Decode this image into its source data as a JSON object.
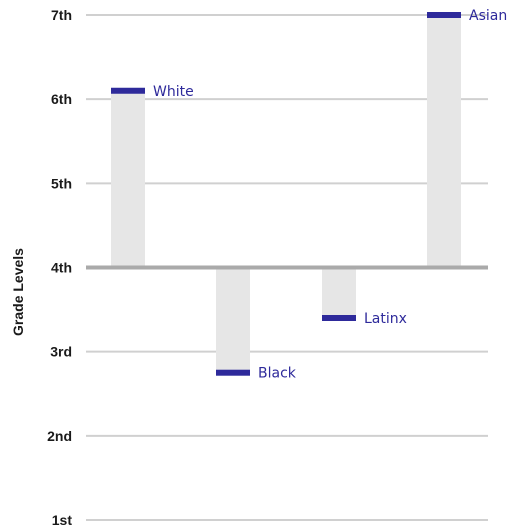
{
  "chart_data": {
    "type": "bar",
    "ylabel": "Grade Levels",
    "xlabel": "",
    "y_ticks": [
      {
        "value": 1,
        "label": "1st"
      },
      {
        "value": 2,
        "label": "2nd"
      },
      {
        "value": 3,
        "label": "3rd"
      },
      {
        "value": 4,
        "label": "4th"
      },
      {
        "value": 5,
        "label": "5th"
      },
      {
        "value": 6,
        "label": "6th"
      },
      {
        "value": 7,
        "label": "7th"
      }
    ],
    "ylim": [
      1,
      7
    ],
    "baseline": 4,
    "grid": true,
    "legend": "none",
    "categories": [
      "White",
      "Black",
      "Latinx",
      "Asian"
    ],
    "values": [
      6.1,
      2.75,
      3.4,
      7.0
    ],
    "colors": {
      "bar_fill": "#e6e6e6",
      "marker": "#2e2a9b",
      "label": "#2e2a9b",
      "grid": "#d0d0d0",
      "baseline": "#aaaaaa"
    }
  }
}
